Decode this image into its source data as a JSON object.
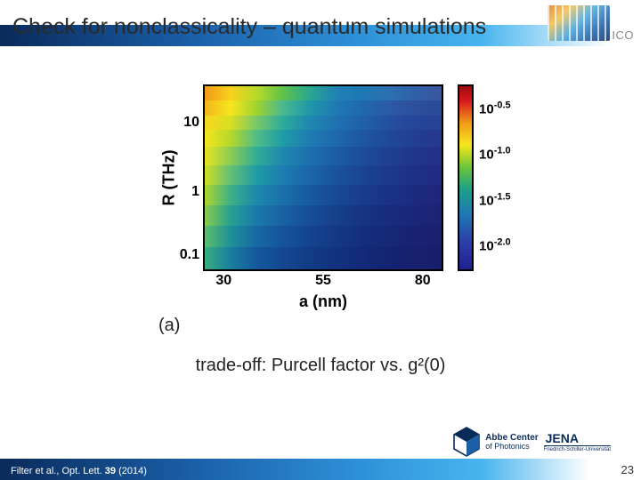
{
  "header": {
    "title": "Check for nonclassicality – quantum simulations",
    "badge": "ICO",
    "bg_gradient": [
      "#0a2a5a",
      "#1a5fa8",
      "#2d8fd6",
      "#47b4ef",
      "#ffffff"
    ]
  },
  "figure": {
    "panel_label": "(a)",
    "type": "heatmap",
    "y_axis": {
      "label": "R (THz)",
      "scale": "log",
      "ticks": [
        {
          "value": 0.1,
          "label": "0.1",
          "pos": 0.92
        },
        {
          "value": 1,
          "label": "1",
          "pos": 0.58
        },
        {
          "value": 10,
          "label": "10",
          "pos": 0.2
        }
      ],
      "lim": [
        0.05,
        20
      ]
    },
    "x_axis": {
      "label": "a (nm)",
      "scale": "linear",
      "ticks": [
        {
          "value": 30,
          "label": "30",
          "pos": 0.08
        },
        {
          "value": 55,
          "label": "55",
          "pos": 0.5
        },
        {
          "value": 80,
          "label": "80",
          "pos": 0.92
        }
      ],
      "lim": [
        25,
        85
      ]
    },
    "colorbar": {
      "scale": "log",
      "ticks": [
        {
          "label_base": "10",
          "label_exp": "-0.5",
          "pos": 0.12
        },
        {
          "label_base": "10",
          "label_exp": "-1.0",
          "pos": 0.37
        },
        {
          "label_base": "10",
          "label_exp": "-1.5",
          "pos": 0.62
        },
        {
          "label_base": "10",
          "label_exp": "-2.0",
          "pos": 0.87
        }
      ],
      "gradient": [
        "#9e0b0e",
        "#d7191c",
        "#f19a19",
        "#f7e61e",
        "#6dc637",
        "#1fa187",
        "#1f78b4",
        "#2c3ea8",
        "#20208f"
      ]
    },
    "heatmap_rows": [
      {
        "top": 0.0,
        "h": 0.08,
        "stops": [
          "#f19a19",
          "#f7d21e",
          "#b7da2a",
          "#5ec24a",
          "#2aa88f",
          "#1f7fb4",
          "#1f78b4",
          "#2c6fb0",
          "#3060a8",
          "#3a55a0"
        ]
      },
      {
        "top": 0.08,
        "h": 0.08,
        "stops": [
          "#f4b61b",
          "#f7e61e",
          "#9ed22f",
          "#4ab98f",
          "#1f98a8",
          "#1f78b4",
          "#2068ac",
          "#2c5aa4",
          "#2c4f9c",
          "#2c4a96"
        ]
      },
      {
        "top": 0.16,
        "h": 0.08,
        "stops": [
          "#f7d81e",
          "#d8de22",
          "#78c86a",
          "#2cab9a",
          "#1f88b0",
          "#1f70b0",
          "#2060a8",
          "#244fa0",
          "#24459a",
          "#284294"
        ]
      },
      {
        "top": 0.24,
        "h": 0.09,
        "stops": [
          "#f7e61e",
          "#b4d82a",
          "#50bc88",
          "#1f9ca6",
          "#1f7cb2",
          "#1e68ac",
          "#1e56a2",
          "#20489a",
          "#223e92",
          "#26388c"
        ]
      },
      {
        "top": 0.33,
        "h": 0.1,
        "stops": [
          "#e8e41f",
          "#8acc55",
          "#30ad96",
          "#1f88ae",
          "#1d70ae",
          "#1c5ca4",
          "#1c4c9a",
          "#1e4090",
          "#20368a",
          "#243086"
        ]
      },
      {
        "top": 0.43,
        "h": 0.11,
        "stops": [
          "#d0df23",
          "#62bf78",
          "#1f9ca4",
          "#1d7cb0",
          "#1b66a8",
          "#1a529c",
          "#1a4492",
          "#1c388a",
          "#1e3084",
          "#222a80"
        ]
      },
      {
        "top": 0.54,
        "h": 0.11,
        "stops": [
          "#b0d62c",
          "#3cb088",
          "#1d88ac",
          "#1a70aa",
          "#185aa0",
          "#184894",
          "#183c8a",
          "#1a3284",
          "#1c2a7e",
          "#20267a"
        ]
      },
      {
        "top": 0.65,
        "h": 0.11,
        "stops": [
          "#88cc4a",
          "#26a092",
          "#1b78aa",
          "#1862a2",
          "#164e96",
          "#16408a",
          "#163482",
          "#182c7c",
          "#1a2678",
          "#1e2274"
        ]
      },
      {
        "top": 0.76,
        "h": 0.12,
        "stops": [
          "#5cbe6c",
          "#1e9098",
          "#1868a4",
          "#15549a",
          "#14448e",
          "#143884",
          "#142e7c",
          "#162876",
          "#182272",
          "#1c2070"
        ]
      },
      {
        "top": 0.88,
        "h": 0.12,
        "stops": [
          "#38ae82",
          "#1a7e9e",
          "#15589c",
          "#134890",
          "#123c86",
          "#12327e",
          "#122a78",
          "#142472",
          "#16206e",
          "#1a1e6c"
        ]
      }
    ],
    "background_color": "#ffffff",
    "border_color": "#000000",
    "border_width": 2,
    "tick_font": {
      "weight": "bold",
      "size_pt": 14,
      "family": "serif"
    },
    "label_font": {
      "weight": "bold",
      "size_pt": 16,
      "family": "serif"
    }
  },
  "caption": "trade-off: Purcell factor vs. g²(0)",
  "footer": {
    "citation_prefix": "Filter et al., Opt. Lett. ",
    "citation_vol": "39",
    "citation_suffix": " (2014)",
    "logo_line1": "Abbe Center",
    "logo_line2": "of Photonics",
    "logo_right": "JENA",
    "logo_sub": "Friedrich-Schiller-Universität",
    "page_number": "23"
  }
}
